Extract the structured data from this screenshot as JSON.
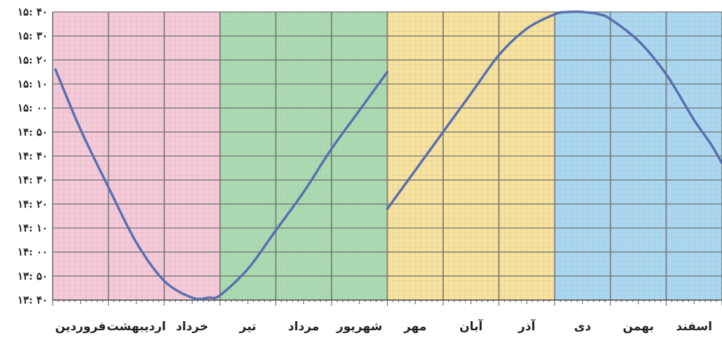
{
  "chart_data": {
    "type": "line",
    "title": "",
    "xlabel": "",
    "ylabel": "",
    "categories": [
      "فروردین",
      "اردیبهشت",
      "خرداد",
      "تیر",
      "مرداد",
      "شهریور",
      "مهر",
      "آبان",
      "آذر",
      "دی",
      "بهمن",
      "اسفند"
    ],
    "y_tick_labels": [
      "۱۵: ۴۰",
      "۱۵: ۳۰",
      "۱۵: ۲۰",
      "۱۵: ۱۰",
      "۱۵: ۰۰",
      "۱۴: ۵۰",
      "۱۴: ۴۰",
      "۱۴: ۳۰",
      "۱۴: ۲۰",
      "۱۴: ۱۰",
      "۱۴: ۰۰",
      "۱۳: ۵۰",
      "۱۳: ۴۰"
    ],
    "ylim_minutes": [
      820,
      940
    ],
    "season_colors": [
      "#f7c9d9",
      "#a8dcb0",
      "#f9e39a",
      "#a9d8f2"
    ],
    "series": [
      {
        "segments": [
          {
            "x": [
              0.05,
              0.5,
              1.0,
              1.5,
              2.0,
              2.5,
              2.8,
              3.0,
              3.5,
              4.0,
              4.5,
              5.0,
              5.5,
              6.0
            ],
            "y": [
              916,
              891,
              867,
              844,
              828,
              821,
              821,
              822,
              833,
              849,
              865,
              883,
              899,
              915
            ]
          },
          {
            "x": [
              6.0,
              6.5,
              7.0,
              7.5,
              8.0,
              8.5,
              9.0,
              9.25,
              9.5,
              9.8,
              10.0,
              10.5,
              11.0,
              11.5,
              11.8,
              12.0
            ],
            "y": [
              858,
              874,
              890,
              906,
              922,
              933,
              939,
              940,
              940,
              939,
              937,
              928,
              914,
              895,
              885,
              877
            ]
          }
        ]
      }
    ],
    "colors": {
      "line": "#5b6fae",
      "major_grid": "#7a7a7a",
      "minor_grid": "#b9b9b9",
      "label": "#222222"
    },
    "grid": true
  }
}
